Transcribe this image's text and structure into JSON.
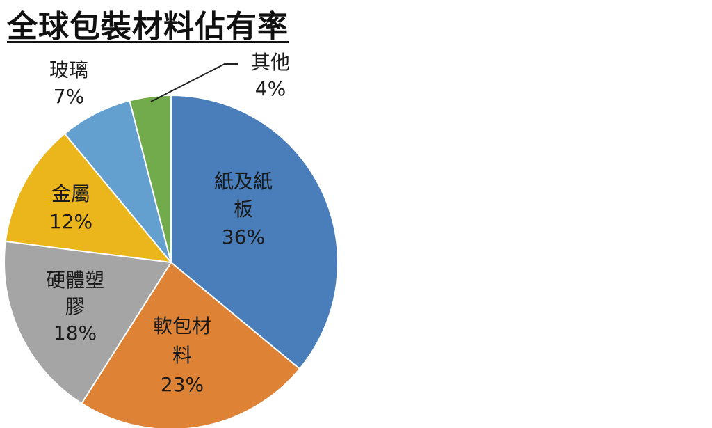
{
  "chart_data": {
    "type": "pie",
    "title": "全球包裝材料佔有率",
    "slices": [
      {
        "name": "紙及紙板",
        "value": 36,
        "value_label": "36%",
        "label_lines": [
          "紙及紙",
          "板"
        ],
        "color": "#4A7EBB"
      },
      {
        "name": "軟包材料",
        "value": 23,
        "value_label": "23%",
        "label_lines": [
          "軟包材",
          "料"
        ],
        "color": "#DE8236"
      },
      {
        "name": "硬體塑膠",
        "value": 18,
        "value_label": "18%",
        "label_lines": [
          "硬體塑",
          "膠"
        ],
        "color": "#A5A5A5"
      },
      {
        "name": "金屬",
        "value": 12,
        "value_label": "12%",
        "label_lines": [
          "金屬"
        ],
        "color": "#EBB51C"
      },
      {
        "name": "玻璃",
        "value": 7,
        "value_label": "7%",
        "label_lines": [
          "玻璃"
        ],
        "color": "#64A0CF"
      },
      {
        "name": "其他",
        "value": 4,
        "value_label": "4%",
        "label_lines": [
          "其他"
        ],
        "color": "#72AB4C"
      }
    ],
    "start": "12 o'clock",
    "direction": "clockwise",
    "legend": "none"
  }
}
